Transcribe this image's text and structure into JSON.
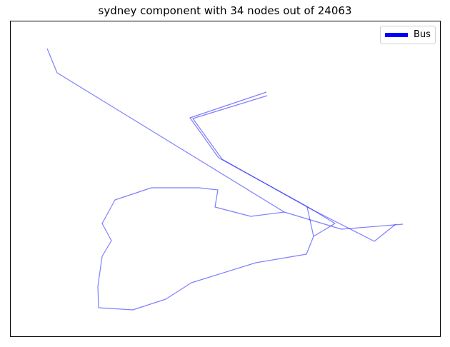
{
  "title": "sydney component with 34 nodes out of 24063",
  "legend": {
    "label": "Bus",
    "color": "#0000ff"
  },
  "chart_data": {
    "type": "network",
    "series": [
      {
        "name": "Bus",
        "color": "#0000ff",
        "alpha": 0.5
      }
    ],
    "paths": [
      [
        [
          66,
          68
        ],
        [
          80,
          102
        ],
        [
          398,
          297
        ],
        [
          478,
          321
        ],
        [
          564,
          314
        ]
      ],
      [
        [
          373,
          129
        ],
        [
          266,
          165
        ],
        [
          306,
          221
        ],
        [
          428,
          288
        ],
        [
          469,
          313
        ],
        [
          439,
          331
        ]
      ],
      [
        [
          374,
          134
        ],
        [
          270,
          166
        ],
        [
          311,
          223
        ],
        [
          430,
          290
        ]
      ],
      [
        [
          430,
          290
        ],
        [
          439,
          331
        ],
        [
          429,
          356
        ],
        [
          358,
          368
        ],
        [
          268,
          396
        ],
        [
          232,
          419
        ],
        [
          186,
          434
        ],
        [
          138,
          431
        ],
        [
          137,
          401
        ],
        [
          143,
          359
        ],
        [
          156,
          337
        ],
        [
          143,
          313
        ],
        [
          161,
          280
        ],
        [
          212,
          263
        ],
        [
          278,
          263
        ],
        [
          305,
          266
        ],
        [
          301,
          290
        ],
        [
          351,
          303
        ],
        [
          398,
          297
        ]
      ],
      [
        [
          430,
          290
        ],
        [
          524,
          338
        ],
        [
          554,
          314
        ]
      ]
    ],
    "axes": {
      "xticks": false,
      "yticks": false,
      "frame": true
    },
    "legend_position": "top-right"
  }
}
